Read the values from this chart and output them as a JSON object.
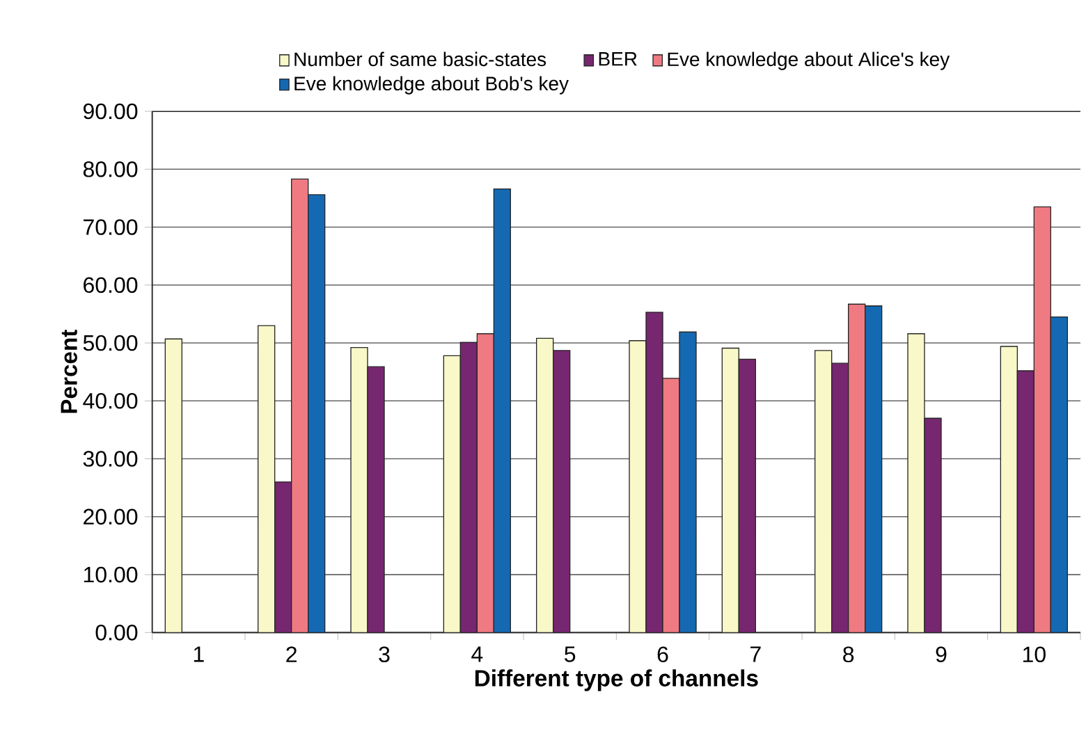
{
  "chart_data": {
    "type": "bar",
    "xlabel": "Different type of channels",
    "ylabel": "Percent",
    "categories": [
      "1",
      "2",
      "3",
      "4",
      "5",
      "6",
      "7",
      "8",
      "9",
      "10"
    ],
    "series": [
      {
        "name": "Number of same basic-states",
        "color": "#f8f8c8",
        "values": [
          50.7,
          53.0,
          49.2,
          47.8,
          50.8,
          50.4,
          49.1,
          48.7,
          51.6,
          49.4
        ]
      },
      {
        "name": "BER",
        "color": "#772670",
        "values": [
          null,
          26.0,
          45.9,
          50.1,
          48.7,
          55.3,
          47.2,
          46.5,
          37.0,
          45.2
        ]
      },
      {
        "name": "Eve knowledge about Alice's key",
        "color": "#f07a82",
        "values": [
          null,
          78.3,
          null,
          51.6,
          null,
          43.9,
          null,
          56.7,
          null,
          73.5
        ]
      },
      {
        "name": "Eve knowledge about Bob's key",
        "color": "#1469b2",
        "values": [
          null,
          75.6,
          null,
          76.6,
          null,
          51.9,
          null,
          56.4,
          null,
          54.5
        ]
      }
    ],
    "ylim": [
      0,
      90
    ],
    "yticks": [
      {
        "value": 0,
        "label": "0.00"
      },
      {
        "value": 10,
        "label": "10.00"
      },
      {
        "value": 20,
        "label": "20.00"
      },
      {
        "value": 30,
        "label": "30.00"
      },
      {
        "value": 40,
        "label": "40.00"
      },
      {
        "value": 50,
        "label": "50.00"
      },
      {
        "value": 60,
        "label": "60.00"
      },
      {
        "value": 70,
        "label": "70.00"
      },
      {
        "value": 80,
        "label": "80.00"
      },
      {
        "value": 90,
        "label": "90.00"
      }
    ],
    "grid": "y",
    "legend": "top"
  }
}
